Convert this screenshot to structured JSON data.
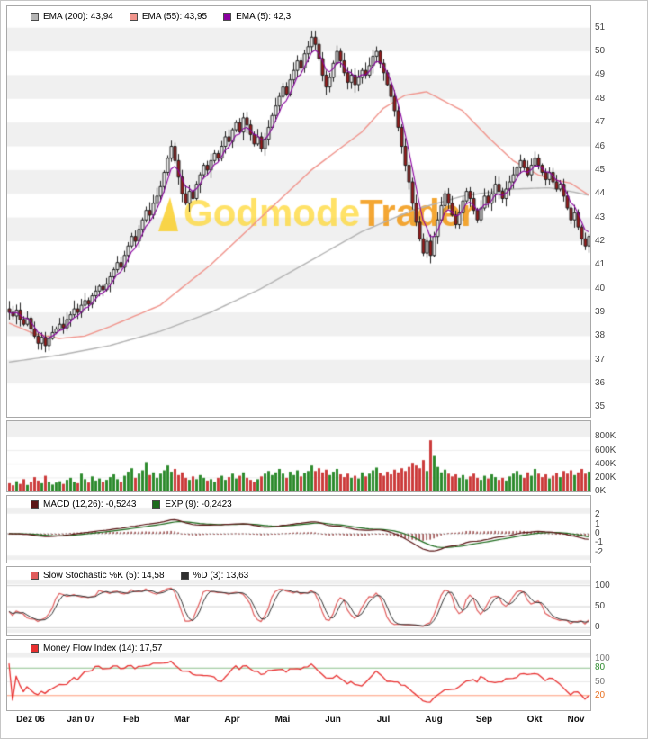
{
  "watermark": {
    "part1": "Godmode",
    "part2": "Trader"
  },
  "chart_data": {
    "type": "candlestick",
    "title": "",
    "x_months": [
      "Dez 06",
      "Jan 07",
      "Feb",
      "Mär",
      "Apr",
      "Mai",
      "Jun",
      "Jul",
      "Aug",
      "Sep",
      "Okt",
      "Nov"
    ],
    "days_per_month": [
      14,
      14,
      14,
      14,
      14,
      14,
      14,
      14,
      14,
      14,
      14,
      8
    ],
    "price": {
      "ylim": [
        34.6,
        51.9
      ],
      "yticks": [
        51,
        50,
        49,
        48,
        47,
        46,
        45,
        44,
        43,
        42,
        41,
        40,
        39,
        38,
        37,
        36,
        35
      ],
      "closes": [
        39.0,
        38.85,
        39.1,
        38.7,
        38.5,
        38.75,
        38.3,
        38.0,
        37.7,
        37.95,
        37.6,
        37.9,
        38.15,
        38.3,
        38.5,
        38.35,
        38.7,
        38.9,
        39.15,
        39.0,
        39.3,
        39.5,
        39.35,
        39.7,
        39.9,
        40.1,
        39.95,
        40.2,
        40.5,
        40.8,
        41.1,
        40.9,
        41.4,
        41.8,
        42.2,
        42.0,
        42.5,
        42.9,
        43.3,
        43.1,
        43.6,
        43.9,
        44.3,
        44.9,
        45.5,
        46.0,
        45.4,
        44.7,
        44.0,
        43.6,
        44.1,
        43.8,
        44.4,
        44.8,
        45.2,
        45.0,
        45.4,
        45.7,
        45.5,
        46.0,
        46.4,
        46.2,
        46.7,
        47.0,
        46.6,
        47.2,
        46.9,
        46.5,
        46.1,
        46.4,
        45.9,
        46.3,
        46.8,
        47.3,
        47.7,
        48.1,
        48.5,
        48.2,
        48.8,
        49.2,
        49.6,
        49.3,
        49.9,
        50.2,
        50.6,
        50.3,
        49.7,
        49.0,
        48.5,
        48.9,
        49.5,
        50.0,
        49.6,
        49.1,
        48.7,
        49.0,
        48.6,
        48.9,
        49.2,
        49.0,
        49.4,
        49.8,
        50.0,
        49.5,
        49.1,
        48.6,
        48.1,
        47.5,
        46.8,
        46.0,
        45.2,
        44.5,
        43.6,
        42.8,
        42.1,
        41.5,
        42.0,
        41.4,
        42.2,
        42.9,
        43.5,
        44.0,
        43.6,
        43.1,
        42.7,
        43.2,
        43.7,
        44.1,
        43.8,
        43.3,
        42.9,
        43.4,
        43.9,
        43.6,
        44.0,
        44.4,
        44.1,
        43.8,
        44.2,
        44.5,
        44.8,
        45.1,
        45.4,
        45.1,
        44.8,
        45.2,
        45.5,
        45.2,
        44.9,
        44.6,
        44.9,
        44.5,
        44.2,
        44.4,
        43.9,
        43.4,
        42.9,
        43.2,
        42.6,
        42.1,
        41.8,
        42.2
      ]
    },
    "overlays": {
      "ema200": {
        "label": "EMA (200): 43,94",
        "color": "#b4b4b4",
        "points": [
          [
            0,
            36.9
          ],
          [
            14,
            37.2
          ],
          [
            28,
            37.6
          ],
          [
            42,
            38.2
          ],
          [
            56,
            39.0
          ],
          [
            70,
            40.0
          ],
          [
            84,
            41.2
          ],
          [
            98,
            42.4
          ],
          [
            112,
            43.3
          ],
          [
            126,
            43.9
          ],
          [
            140,
            44.2
          ],
          [
            150,
            44.25
          ],
          [
            156,
            44.1
          ],
          [
            161,
            43.94
          ]
        ]
      },
      "ema55": {
        "label": "EMA (55): 43,95",
        "color": "#f0948c",
        "points": [
          [
            0,
            38.55
          ],
          [
            7,
            38.1
          ],
          [
            14,
            37.9
          ],
          [
            21,
            38.0
          ],
          [
            28,
            38.4
          ],
          [
            42,
            39.3
          ],
          [
            56,
            41.0
          ],
          [
            70,
            43.0
          ],
          [
            84,
            45.0
          ],
          [
            98,
            46.6
          ],
          [
            104,
            47.6
          ],
          [
            110,
            48.15
          ],
          [
            116,
            48.3
          ],
          [
            126,
            47.5
          ],
          [
            133,
            46.4
          ],
          [
            140,
            45.4
          ],
          [
            147,
            44.8
          ],
          [
            151,
            44.6
          ],
          [
            156,
            44.45
          ],
          [
            161,
            43.95
          ]
        ]
      },
      "ema5": {
        "label": "EMA (5): 42,3",
        "color": "#8a00a0",
        "period": 5
      }
    },
    "volume": {
      "yticks": [
        {
          "v": 800,
          "label": "800K"
        },
        {
          "v": 600,
          "label": "600K"
        },
        {
          "v": 400,
          "label": "400K"
        },
        {
          "v": 200,
          "label": "200K"
        },
        {
          "v": 0,
          "label": "0K"
        }
      ],
      "up_color": "#2e8b2e",
      "down_color": "#cc3c3c",
      "values_k": [
        120,
        90,
        150,
        110,
        180,
        95,
        140,
        210,
        160,
        120,
        230,
        140,
        100,
        130,
        150,
        110,
        170,
        200,
        140,
        120,
        260,
        180,
        130,
        220,
        160,
        190,
        140,
        170,
        210,
        250,
        180,
        140,
        230,
        290,
        340,
        200,
        260,
        310,
        430,
        240,
        280,
        200,
        260,
        310,
        380,
        290,
        330,
        240,
        280,
        200,
        170,
        220,
        180,
        240,
        200,
        160,
        180,
        140,
        200,
        230,
        170,
        210,
        260,
        190,
        230,
        280,
        200,
        170,
        140,
        180,
        220,
        260,
        300,
        240,
        280,
        330,
        260,
        200,
        290,
        240,
        310,
        220,
        270,
        300,
        380,
        300,
        340,
        280,
        320,
        240,
        290,
        330,
        250,
        210,
        260,
        200,
        230,
        190,
        280,
        220,
        260,
        310,
        350,
        270,
        230,
        290,
        250,
        320,
        280,
        340,
        300,
        360,
        420,
        380,
        340,
        460,
        300,
        750,
        520,
        360,
        280,
        320,
        260,
        220,
        250,
        200,
        240,
        180,
        220,
        260,
        200,
        170,
        230,
        190,
        250,
        210,
        170,
        200,
        160,
        220,
        260,
        300,
        240,
        200,
        280,
        230,
        330,
        260,
        210,
        250,
        190,
        230,
        270,
        210,
        300,
        260,
        310,
        240,
        280,
        330,
        260,
        290
      ]
    },
    "macd": {
      "line_label": "MACD (12,26): -0,5243",
      "signal_label": "EXP (9): -0,2423",
      "fast": 12,
      "slow": 26,
      "signal": 9,
      "yticks": [
        2,
        1,
        0,
        -1,
        -2
      ],
      "line_color": "#5a1616",
      "signal_color": "#1d6b1d",
      "hist_color": "#7a1515"
    },
    "stochastic": {
      "k_label": "Slow Stochastic %K (5): 14,58",
      "d_label": "%D (3): 13,63",
      "k_period": 5,
      "d_period": 3,
      "yticks": [
        100,
        50,
        0
      ],
      "k_color": "#e05c5c",
      "d_color": "#303030"
    },
    "mfi": {
      "label": "Money Flow Index (14): 17,57",
      "period": 14,
      "yticks": [
        {
          "v": 100,
          "label": "100",
          "color": "#777777"
        },
        {
          "v": 80,
          "label": "80",
          "color": "#2e8b2e"
        },
        {
          "v": 50,
          "label": "50",
          "color": "#777777"
        },
        {
          "v": 20,
          "label": "20",
          "color": "#e87020"
        }
      ],
      "line_color": "#e83030",
      "upper": 80,
      "lower": 20,
      "upper_color": "#8cc08c",
      "lower_color": "#ff9977"
    }
  }
}
